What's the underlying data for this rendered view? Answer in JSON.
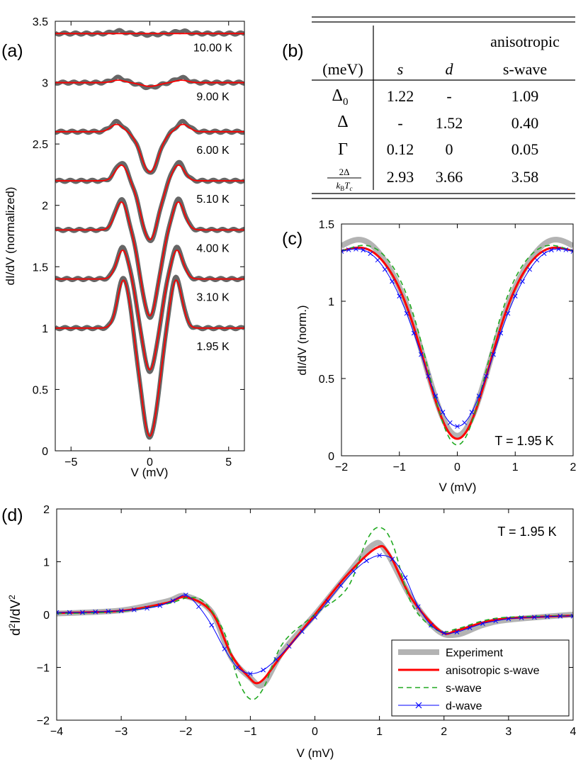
{
  "panel_labels": {
    "a": "(a)",
    "b": "(b)",
    "c": "(c)",
    "d": "(d)"
  },
  "table": {
    "header_top": "anisotropic",
    "header": [
      "(meV)",
      "s",
      "d",
      "s-wave"
    ],
    "rows": [
      {
        "label": "Δ0",
        "values": [
          "1.22",
          "-",
          "1.09"
        ]
      },
      {
        "label": "Δ",
        "values": [
          "-",
          "1.52",
          "0.40"
        ]
      },
      {
        "label": "Γ",
        "values": [
          "0.12",
          "0",
          "0.05"
        ]
      },
      {
        "label": "2Δ/kBTc",
        "values": [
          "2.93",
          "3.66",
          "3.58"
        ]
      }
    ]
  },
  "colors": {
    "experiment": "#b3b3b3",
    "experiment_a": "#666666",
    "fit": "#ff0000",
    "swave": "#22aa22",
    "dwave": "#0000ff"
  },
  "chart_data": [
    {
      "id": "a",
      "type": "line",
      "title": "",
      "xlabel": "V (mV)",
      "ylabel": "dI/dV (normalized)",
      "xlim": [
        -6,
        6
      ],
      "ylim": [
        0,
        3.5
      ],
      "xticks": [
        -5,
        0,
        5
      ],
      "yticks": [
        0,
        0.5,
        1,
        1.5,
        2,
        2.5,
        3,
        3.5
      ],
      "curves": [
        {
          "label": "10.00 K",
          "offset": 3.4,
          "min": 3.4,
          "peak": 3.4,
          "vp": 2.0
        },
        {
          "label": "9.00 K",
          "offset": 3.0,
          "min": 2.97,
          "peak": 3.02,
          "vp": 2.0
        },
        {
          "label": "6.00 K",
          "offset": 2.6,
          "min": 2.27,
          "peak": 2.66,
          "vp": 2.1
        },
        {
          "label": "5.10 K",
          "offset": 2.2,
          "min": 1.72,
          "peak": 2.33,
          "vp": 1.8
        },
        {
          "label": "4.00 K",
          "offset": 1.8,
          "min": 1.1,
          "peak": 2.03,
          "vp": 1.8
        },
        {
          "label": "3.10 K",
          "offset": 1.4,
          "min": 0.66,
          "peak": 1.64,
          "vp": 1.7
        },
        {
          "label": "1.95 K",
          "offset": 1.0,
          "min": 0.12,
          "peak": 1.4,
          "vp": 1.65
        }
      ]
    },
    {
      "id": "c",
      "type": "line",
      "xlabel": "V (mV)",
      "ylabel": "dI/dV (norm.)",
      "annotation": "T = 1.95 K",
      "xlim": [
        -2,
        2
      ],
      "ylim": [
        0,
        1.5
      ],
      "xticks": [
        -2,
        -1,
        0,
        1,
        2
      ],
      "yticks": [
        0,
        0.5,
        1,
        1.5
      ],
      "series": [
        {
          "name": "Experiment",
          "key": "experiment",
          "min": 0.13,
          "peak": 1.41,
          "vp": 1.65,
          "width": 0.55
        },
        {
          "name": "anisotropic s-wave",
          "key": "fit",
          "min": 0.11,
          "peak": 1.36,
          "vp": 1.6,
          "width": 0.55
        },
        {
          "name": "s-wave",
          "key": "swave",
          "min": 0.07,
          "peak": 1.37,
          "vp": 1.55,
          "width": 0.5
        },
        {
          "name": "d-wave",
          "key": "dwave",
          "min": 0.19,
          "peak": 1.36,
          "vp": 1.6,
          "width": 0.6
        }
      ]
    },
    {
      "id": "d",
      "type": "line",
      "xlabel": "V (mV)",
      "ylabel": "d2I/dV2",
      "annotation": "T = 1.95 K",
      "xlim": [
        -4,
        4
      ],
      "ylim": [
        -2,
        2
      ],
      "xticks": [
        -4,
        -3,
        -2,
        -1,
        0,
        1,
        2,
        3,
        4
      ],
      "yticks": [
        -2,
        -1,
        0,
        1,
        2
      ],
      "legend_position": "bottom-right",
      "series": [
        {
          "name": "Experiment",
          "key": "experiment",
          "points": [
            [
              -4,
              0.02
            ],
            [
              -3,
              0.08
            ],
            [
              -2.3,
              0.25
            ],
            [
              -2.0,
              0.35
            ],
            [
              -1.6,
              0.05
            ],
            [
              -1.3,
              -0.8
            ],
            [
              -1.0,
              -1.2
            ],
            [
              -0.8,
              -1.32
            ],
            [
              -0.5,
              -0.7
            ],
            [
              0,
              0.0
            ],
            [
              0.5,
              0.75
            ],
            [
              0.9,
              1.32
            ],
            [
              1.1,
              1.2
            ],
            [
              1.5,
              0.3
            ],
            [
              1.9,
              -0.3
            ],
            [
              2.2,
              -0.38
            ],
            [
              2.6,
              -0.2
            ],
            [
              3,
              -0.1
            ],
            [
              4,
              0.0
            ]
          ]
        },
        {
          "name": "anisotropic s-wave",
          "key": "fit",
          "points": [
            [
              -4,
              0.03
            ],
            [
              -3,
              0.07
            ],
            [
              -2.3,
              0.22
            ],
            [
              -2.0,
              0.33
            ],
            [
              -1.6,
              0.05
            ],
            [
              -1.3,
              -0.75
            ],
            [
              -1.05,
              -1.15
            ],
            [
              -0.85,
              -1.28
            ],
            [
              -0.5,
              -0.75
            ],
            [
              0,
              0.0
            ],
            [
              0.5,
              0.75
            ],
            [
              0.95,
              1.26
            ],
            [
              1.15,
              1.15
            ],
            [
              1.5,
              0.3
            ],
            [
              1.95,
              -0.32
            ],
            [
              2.2,
              -0.3
            ],
            [
              2.6,
              -0.15
            ],
            [
              3,
              -0.07
            ],
            [
              4,
              -0.02
            ]
          ]
        },
        {
          "name": "s-wave",
          "key": "swave",
          "points": [
            [
              -4,
              0.02
            ],
            [
              -3,
              0.06
            ],
            [
              -2.3,
              0.2
            ],
            [
              -1.95,
              0.32
            ],
            [
              -1.7,
              0.22
            ],
            [
              -1.4,
              -0.35
            ],
            [
              -1.2,
              -1.2
            ],
            [
              -1.0,
              -1.6
            ],
            [
              -0.8,
              -1.4
            ],
            [
              -0.5,
              -0.55
            ],
            [
              0,
              0.0
            ],
            [
              0.5,
              0.5
            ],
            [
              0.8,
              1.4
            ],
            [
              1.0,
              1.65
            ],
            [
              1.2,
              1.35
            ],
            [
              1.5,
              0.2
            ],
            [
              1.9,
              -0.3
            ],
            [
              2.2,
              -0.27
            ],
            [
              2.6,
              -0.12
            ],
            [
              3,
              -0.05
            ],
            [
              4,
              -0.02
            ]
          ]
        },
        {
          "name": "d-wave",
          "key": "dwave",
          "points": [
            [
              -4,
              0.04
            ],
            [
              -3.8,
              0.04
            ],
            [
              -3.6,
              0.04
            ],
            [
              -3.4,
              0.05
            ],
            [
              -3.2,
              0.06
            ],
            [
              -3.0,
              0.07
            ],
            [
              -2.8,
              0.09
            ],
            [
              -2.6,
              0.12
            ],
            [
              -2.4,
              0.17
            ],
            [
              -2.2,
              0.26
            ],
            [
              -2.0,
              0.37
            ],
            [
              -1.8,
              0.15
            ],
            [
              -1.6,
              -0.2
            ],
            [
              -1.4,
              -0.65
            ],
            [
              -1.2,
              -1.0
            ],
            [
              -1.0,
              -1.12
            ],
            [
              -0.8,
              -1.05
            ],
            [
              -0.6,
              -0.85
            ],
            [
              -0.4,
              -0.6
            ],
            [
              -0.2,
              -0.32
            ],
            [
              0,
              -0.05
            ],
            [
              0.2,
              0.25
            ],
            [
              0.4,
              0.55
            ],
            [
              0.6,
              0.82
            ],
            [
              0.8,
              1.02
            ],
            [
              1.0,
              1.12
            ],
            [
              1.2,
              1.05
            ],
            [
              1.4,
              0.7
            ],
            [
              1.6,
              0.15
            ],
            [
              1.8,
              -0.2
            ],
            [
              2.0,
              -0.35
            ],
            [
              2.2,
              -0.33
            ],
            [
              2.4,
              -0.25
            ],
            [
              2.6,
              -0.17
            ],
            [
              2.8,
              -0.12
            ],
            [
              3.0,
              -0.08
            ],
            [
              3.2,
              -0.06
            ],
            [
              3.4,
              -0.05
            ],
            [
              3.6,
              -0.04
            ],
            [
              3.8,
              -0.03
            ],
            [
              4.0,
              -0.03
            ]
          ]
        }
      ]
    }
  ]
}
